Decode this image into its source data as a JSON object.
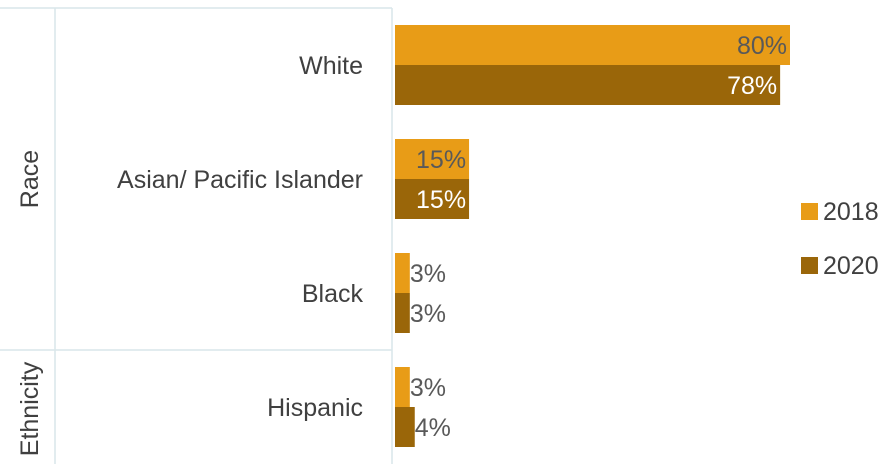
{
  "chart_data": {
    "type": "bar",
    "orientation": "horizontal",
    "groups": [
      {
        "label": "Race",
        "categories": [
          "White",
          "Asian/ Pacific Islander",
          "Black"
        ]
      },
      {
        "label": "Ethnicity",
        "categories": [
          "Hispanic"
        ]
      }
    ],
    "categories": [
      "White",
      "Asian/ Pacific Islander",
      "Black",
      "Hispanic"
    ],
    "series": [
      {
        "name": "2018",
        "color": "#E89C17",
        "values": [
          80,
          15,
          3,
          3
        ],
        "labels": [
          "80%",
          "15%",
          "3%",
          "3%"
        ]
      },
      {
        "name": "2020",
        "color": "#9A6609",
        "values": [
          78,
          15,
          3,
          4
        ],
        "labels": [
          "78%",
          "15%",
          "3%",
          "4%"
        ]
      }
    ],
    "xlim": [
      0,
      100
    ],
    "unit": "%",
    "grid": false,
    "legend_position": "right"
  }
}
